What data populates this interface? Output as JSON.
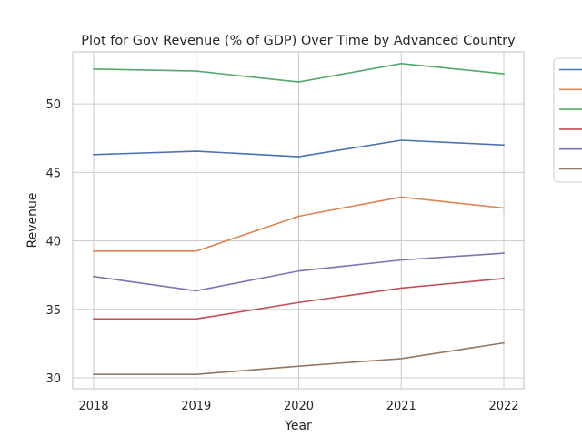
{
  "chart_data": {
    "type": "line",
    "title": "Plot for Gov Revenue (% of GDP) Over Time by Advanced Country",
    "xlabel": "Year",
    "ylabel": "Revenue",
    "x": [
      2018,
      2019,
      2020,
      2021,
      2022
    ],
    "xticks": [
      "2018",
      "2019",
      "2020",
      "2021",
      "2022"
    ],
    "yticks": [
      30,
      35,
      40,
      45,
      50
    ],
    "ylim": [
      29.2,
      53.8
    ],
    "grid": true,
    "legend": "outside-right",
    "series": [
      {
        "color": "#4c72b0",
        "values": [
          46.3,
          46.55,
          46.15,
          47.35,
          47.0
        ]
      },
      {
        "color": "#dd8452",
        "values": [
          39.25,
          39.25,
          41.8,
          43.2,
          42.4
        ]
      },
      {
        "color": "#55a868",
        "values": [
          52.55,
          52.4,
          51.6,
          52.95,
          52.2
        ]
      },
      {
        "color": "#c44e52",
        "values": [
          34.3,
          34.3,
          35.5,
          36.55,
          37.25
        ]
      },
      {
        "color": "#8172b3",
        "values": [
          37.4,
          36.35,
          37.8,
          38.6,
          39.1
        ]
      },
      {
        "color": "#937860",
        "values": [
          30.25,
          30.25,
          30.85,
          31.4,
          32.55
        ]
      }
    ]
  }
}
